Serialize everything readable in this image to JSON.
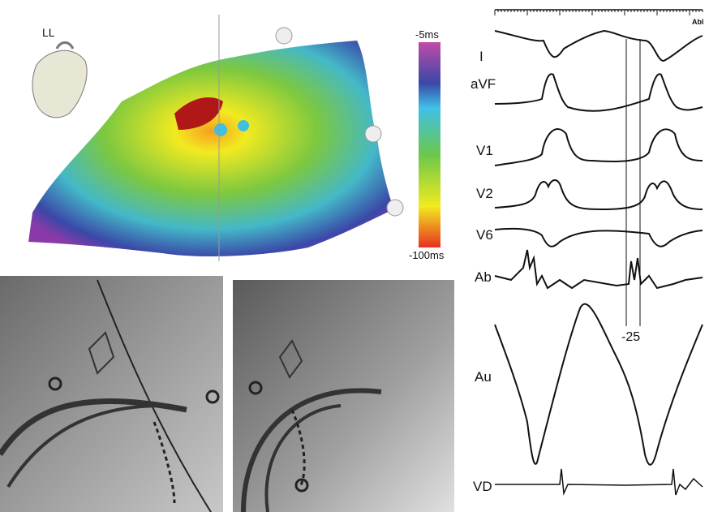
{
  "map": {
    "view_label": "LL",
    "colorbar": {
      "max_label": "-5ms",
      "min_label": "-100ms",
      "colors": [
        "#c04aa8",
        "#3a48a8",
        "#3fc0e8",
        "#6cc84a",
        "#f2ea20",
        "#e83020"
      ]
    }
  },
  "fluoroscopy": {
    "panels": 2
  },
  "ecg": {
    "ruler_label": "Abl",
    "leads": [
      "I",
      "aVF",
      "V1",
      "V2",
      "V6",
      "Ab",
      "Au",
      "VD"
    ],
    "interval_label": "-25"
  }
}
